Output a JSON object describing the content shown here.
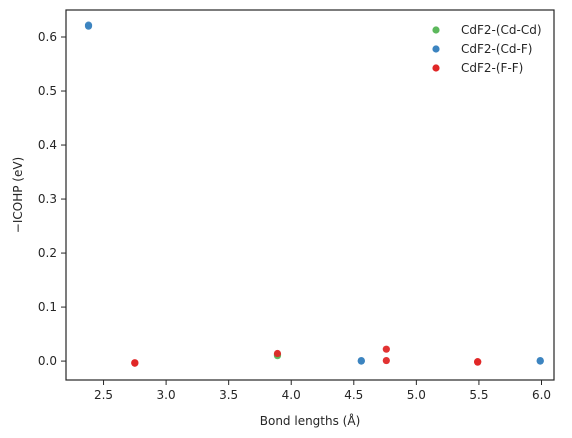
{
  "chart_data": {
    "type": "scatter",
    "xlabel": "Bond lengths (Å)",
    "ylabel": "−ICOHP (eV)",
    "xlim": [
      2.2,
      6.1
    ],
    "ylim": [
      -0.035,
      0.65
    ],
    "xticks": [
      2.5,
      3.0,
      3.5,
      4.0,
      4.5,
      5.0,
      5.5,
      6.0
    ],
    "xtick_labels": [
      "2.5",
      "3.0",
      "3.5",
      "4.0",
      "4.5",
      "5.0",
      "5.5",
      "6.0"
    ],
    "yticks": [
      0.0,
      0.1,
      0.2,
      0.3,
      0.4,
      0.5,
      0.6
    ],
    "ytick_labels": [
      "0.0",
      "0.1",
      "0.2",
      "0.3",
      "0.4",
      "0.5",
      "0.6"
    ],
    "grid": false,
    "legend_position": "top-right",
    "series": [
      {
        "name": "CdF2-(Cd-Cd)",
        "color": "#5cb85c",
        "points": [
          [
            3.89,
            0.012
          ],
          [
            3.89,
            0.01
          ]
        ]
      },
      {
        "name": "CdF2-(Cd-F)",
        "color": "#3c84c0",
        "points": [
          [
            2.38,
            0.622
          ],
          [
            2.38,
            0.62
          ],
          [
            4.56,
            0.001
          ],
          [
            4.56,
            0.0
          ],
          [
            5.99,
            0.001
          ],
          [
            5.99,
            0.0
          ]
        ]
      },
      {
        "name": "CdF2-(F-F)",
        "color": "#e02727",
        "points": [
          [
            2.75,
            -0.003
          ],
          [
            2.75,
            -0.004
          ],
          [
            3.89,
            0.014
          ],
          [
            4.76,
            0.022
          ],
          [
            4.76,
            0.001
          ],
          [
            5.49,
            -0.001
          ],
          [
            5.49,
            -0.002
          ]
        ]
      }
    ]
  }
}
